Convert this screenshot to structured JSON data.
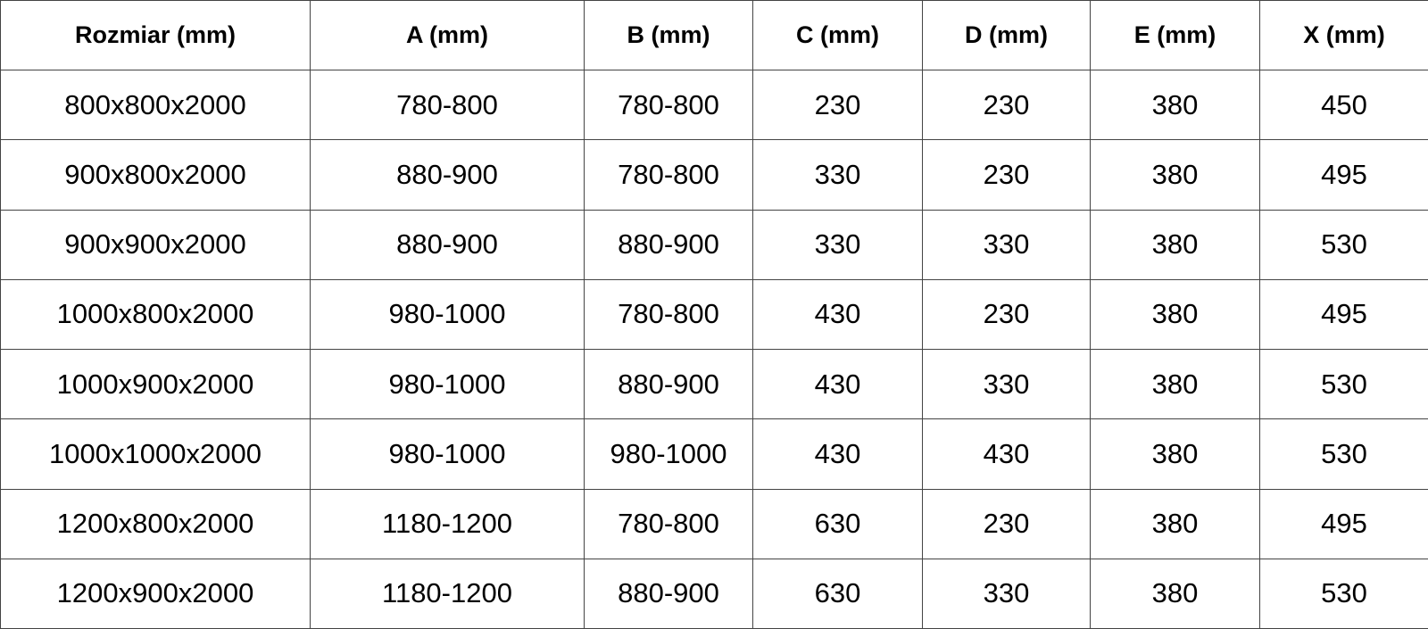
{
  "table": {
    "headers": [
      "Rozmiar (mm)",
      "A (mm)",
      "B (mm)",
      "C (mm)",
      "D (mm)",
      "E (mm)",
      "X (mm)"
    ],
    "rows": [
      [
        "800x800x2000",
        "780-800",
        "780-800",
        "230",
        "230",
        "380",
        "450"
      ],
      [
        "900x800x2000",
        "880-900",
        "780-800",
        "330",
        "230",
        "380",
        "495"
      ],
      [
        "900x900x2000",
        "880-900",
        "880-900",
        "330",
        "330",
        "380",
        "530"
      ],
      [
        "1000x800x2000",
        "980-1000",
        "780-800",
        "430",
        "230",
        "380",
        "495"
      ],
      [
        "1000x900x2000",
        "980-1000",
        "880-900",
        "430",
        "330",
        "380",
        "530"
      ],
      [
        "1000x1000x2000",
        "980-1000",
        "980-1000",
        "430",
        "430",
        "380",
        "530"
      ],
      [
        "1200x800x2000",
        "1180-1200",
        "780-800",
        "630",
        "230",
        "380",
        "495"
      ],
      [
        "1200x900x2000",
        "1180-1200",
        "880-900",
        "630",
        "330",
        "380",
        "530"
      ]
    ]
  }
}
